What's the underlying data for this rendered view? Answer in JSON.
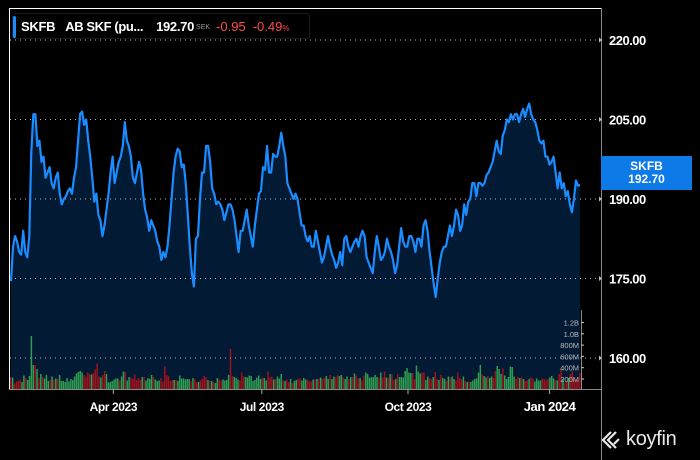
{
  "legend": {
    "ticker": "SKFB",
    "name": "AB SKF (pu...",
    "price": "192.70",
    "currency": "SEK",
    "change": "-0.95",
    "change_pct": "-0.49",
    "pct_sign": "%"
  },
  "price_tag": {
    "ticker": "SKFB",
    "value": "192.70"
  },
  "brand": {
    "name": "koyfin"
  },
  "colors": {
    "line": "#1a8cff",
    "area": "#021a33",
    "up_volume": "#2e9e50",
    "down_volume": "#a0121c",
    "negative_text": "#ff4d4d",
    "tag": "#0d7ae8"
  },
  "chart_data": {
    "type": "area",
    "title": "SKFB AB SKF",
    "xlabel": "",
    "ylabel": "",
    "ylim": [
      157,
      226
    ],
    "grid": true,
    "y_ticks": [
      "220.00",
      "205.00",
      "190.00",
      "175.00",
      "160.00"
    ],
    "y_tick_values": [
      220,
      205,
      190,
      175,
      160
    ],
    "x_ticks": [
      "Apr 2023",
      "Jul 2023",
      "Oct 2023",
      "Jan 2024"
    ],
    "x_tick_positions": [
      0.181,
      0.441,
      0.697,
      0.945
    ],
    "volume_ticks": [
      "1.2B",
      "1.0B",
      "800M",
      "600M",
      "400M",
      "200M"
    ],
    "volume_tick_values": [
      1200,
      1000,
      800,
      600,
      400,
      200
    ],
    "volume_unit": "M",
    "last_value": 192.7,
    "series": [
      {
        "name": "SKFB price",
        "values": [
          174.5,
          181,
          183,
          182,
          180,
          179.5,
          184,
          180,
          179,
          183,
          199,
          206,
          206,
          200,
          201,
          197,
          198,
          194,
          195,
          196,
          193,
          192,
          194,
          195,
          191,
          189,
          190,
          190.5,
          191.5,
          192,
          191,
          194,
          196,
          201,
          206,
          206.5,
          204,
          205,
          201,
          198,
          194,
          189.5,
          191,
          187,
          186,
          183,
          185,
          188,
          191,
          195,
          198,
          193,
          195,
          197,
          198,
          200,
          204.5,
          201,
          200,
          198,
          194,
          193,
          195,
          197,
          195.5,
          191,
          188,
          186.5,
          184,
          186,
          185,
          184,
          182,
          181,
          178.5,
          180,
          179,
          181,
          185,
          190,
          195,
          198,
          199.5,
          199,
          196,
          196.5,
          193,
          187,
          181,
          176,
          173.5,
          182.5,
          183,
          190,
          195,
          195,
          200,
          200,
          197,
          192,
          191,
          189,
          189.5,
          189,
          188,
          186,
          187.5,
          189,
          189,
          188,
          186,
          183,
          180,
          184,
          184,
          186,
          188,
          185,
          183,
          181,
          185,
          188,
          191,
          191.5,
          196,
          195.5,
          200,
          195,
          195,
          198.5,
          198,
          198,
          200,
          202.5,
          200,
          198,
          193,
          192,
          191,
          190,
          191,
          190,
          187.5,
          185,
          185,
          183,
          182,
          183,
          181,
          181,
          184,
          182,
          180,
          178,
          179,
          181,
          183,
          181,
          179.5,
          178.5,
          177,
          178,
          180,
          177.5,
          182.5,
          183,
          181,
          180,
          181,
          182,
          182.5,
          181,
          183,
          184,
          183,
          179,
          178,
          177,
          176,
          180,
          183,
          181,
          178.5,
          179,
          180,
          182.5,
          181,
          180,
          178.5,
          176,
          177.5,
          181,
          184.5,
          182,
          181,
          181,
          183,
          183,
          182,
          180,
          182.5,
          182.5,
          181,
          185,
          186,
          184,
          180,
          177,
          174,
          171.5,
          175,
          178,
          180,
          181,
          181,
          183,
          185,
          183,
          185,
          188,
          187,
          184,
          185,
          189,
          187,
          189.5,
          190,
          193,
          193,
          190.5,
          193,
          193,
          192.5,
          193,
          194.5,
          195,
          196,
          197,
          199,
          201,
          199,
          198.5,
          202,
          203,
          205,
          204.5,
          206,
          205,
          206,
          206,
          204.5,
          206,
          207,
          205.5,
          207,
          208,
          206,
          205,
          204.5,
          203,
          201,
          200.5,
          201,
          198,
          198,
          196.5,
          197,
          198,
          195,
          192,
          195,
          192,
          193,
          190.5,
          191.5,
          189,
          187.5,
          190,
          193.5,
          192.5,
          192.7
        ]
      }
    ],
    "volume": {
      "name": "Volume (M)",
      "values": [
        240,
        230,
        110,
        150,
        160,
        190,
        140,
        270,
        220,
        180,
        260,
        1060,
        480,
        480,
        400,
        220,
        300,
        240,
        210,
        280,
        160,
        180,
        250,
        190,
        210,
        200,
        280,
        160,
        160,
        140,
        220,
        150,
        200,
        180,
        250,
        310,
        340,
        360,
        330,
        280,
        250,
        330,
        300,
        290,
        320,
        390,
        510,
        250,
        230,
        280,
        360,
        300,
        130,
        140,
        160,
        190,
        210,
        210,
        170,
        250,
        350,
        340,
        170,
        240,
        230,
        210,
        290,
        180,
        220,
        180,
        240,
        240,
        170,
        220,
        200,
        280,
        240,
        190,
        160,
        170,
        220,
        150,
        450,
        280,
        260,
        160,
        180,
        180,
        180,
        160,
        270,
        210,
        210,
        190,
        200,
        200,
        160,
        220,
        200,
        140,
        140,
        170,
        200,
        260,
        230,
        180,
        160,
        160,
        140,
        120,
        220,
        190,
        170,
        190,
        170,
        180,
        280,
        800,
        260,
        240,
        220,
        190,
        170,
        330,
        250,
        240,
        230,
        270,
        260,
        160,
        180,
        230,
        270,
        200,
        230,
        220,
        170,
        350,
        230,
        250,
        190,
        200,
        250,
        210,
        300,
        170,
        160,
        190,
        140,
        200,
        120,
        160,
        180,
        210,
        210,
        170,
        220,
        190,
        190,
        160,
        150,
        190,
        190,
        200,
        210,
        230,
        200,
        220,
        260,
        200,
        280,
        200,
        250,
        230,
        270,
        260,
        280,
        230,
        200,
        250,
        200,
        240,
        240,
        310,
        270,
        210,
        220,
        170,
        270,
        330,
        300,
        230,
        230,
        240,
        280,
        240,
        230,
        330,
        230,
        350,
        230,
        220,
        300,
        290,
        180,
        200,
        300,
        240,
        240,
        230,
        360,
        420,
        330,
        320,
        320,
        200,
        470,
        350,
        310,
        330,
        330,
        180,
        250,
        220,
        200,
        240,
        340,
        200,
        180,
        280,
        220,
        200,
        160,
        250,
        230,
        250,
        200,
        170,
        330,
        220,
        200,
        250,
        160,
        140,
        150,
        140,
        170,
        200,
        210,
        330,
        480,
        290,
        260,
        230,
        260,
        220,
        250,
        220,
        360,
        460,
        400,
        300,
        410,
        270,
        200,
        240,
        450,
        440,
        250,
        200,
        240,
        220,
        230,
        200,
        160,
        170,
        200,
        230,
        210,
        150,
        210,
        170,
        170,
        210,
        200,
        180,
        200,
        230,
        260,
        210,
        180,
        170,
        300,
        400,
        200,
        130,
        140,
        220,
        300,
        350,
        190,
        190,
        180,
        320
      ],
      "up": [
        0,
        1,
        0,
        0,
        0,
        0,
        1,
        1,
        0,
        1,
        1,
        1,
        1,
        0,
        1,
        0,
        1,
        0,
        1,
        1,
        1,
        0,
        1,
        0,
        1,
        0,
        1,
        1,
        1,
        1,
        1,
        1,
        1,
        1,
        1,
        1,
        1,
        1,
        1,
        0,
        0,
        0,
        0,
        1,
        0,
        0,
        0,
        0,
        1,
        0,
        0,
        1,
        1,
        1,
        1,
        1,
        1,
        1,
        0,
        1,
        1,
        0,
        1,
        1,
        0,
        0,
        0,
        0,
        0,
        0,
        1,
        0,
        1,
        1,
        1,
        1,
        0,
        1,
        1,
        1,
        0,
        0,
        0,
        0,
        0,
        0,
        0,
        1,
        0,
        1,
        1,
        1,
        1,
        1,
        1,
        1,
        0,
        1,
        0,
        0,
        1,
        0,
        0,
        0,
        0,
        1,
        0,
        1,
        0,
        1,
        1,
        0,
        0,
        1,
        1,
        1,
        1,
        0,
        0,
        1,
        1,
        1,
        0,
        0,
        0,
        1,
        1,
        1,
        1,
        1,
        1,
        1,
        1,
        1,
        0,
        1,
        1,
        0,
        0,
        0,
        1,
        0,
        1,
        1,
        1,
        0,
        1,
        0,
        0,
        1,
        0,
        1,
        1,
        0,
        0,
        1,
        1,
        1,
        0,
        0,
        0,
        1,
        0,
        1,
        0,
        1,
        0,
        0,
        1,
        1,
        0,
        1,
        1,
        0,
        0,
        1,
        1,
        0,
        1,
        1,
        0,
        1,
        0,
        1,
        0,
        0,
        1,
        0,
        0,
        1,
        1,
        1,
        1,
        1,
        1,
        1,
        0,
        1,
        0,
        0,
        1,
        0,
        1,
        0,
        0,
        1,
        0,
        1,
        1,
        1,
        1,
        1,
        1,
        1,
        0,
        0,
        1,
        1,
        1,
        0,
        0,
        1,
        1,
        0,
        0,
        1,
        0,
        0,
        1,
        0,
        1,
        1,
        0,
        1,
        0,
        1,
        1,
        0,
        0,
        0,
        0,
        1,
        0,
        1,
        0,
        1,
        1,
        1,
        1,
        1,
        1,
        0,
        1,
        1,
        0,
        1,
        1,
        0,
        0,
        1,
        1,
        1,
        0,
        1,
        1,
        1,
        1,
        1,
        1,
        0,
        0,
        1,
        0,
        1,
        0,
        0,
        1,
        0,
        0,
        1,
        1,
        1,
        1,
        0,
        0,
        0,
        0,
        1,
        1,
        1,
        0,
        1,
        0,
        0,
        1,
        0,
        0,
        1,
        0
      ]
    }
  }
}
